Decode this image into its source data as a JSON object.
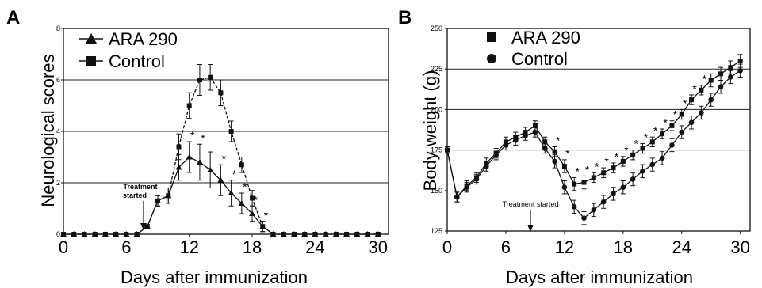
{
  "panels": [
    {
      "letter": "A",
      "ylabel": "Neurological scores",
      "xlabel": "Days after immunization",
      "annotation": "Treatment started",
      "annotation_lines": [
        "Treatment",
        "started"
      ],
      "legend": [
        {
          "label": "ARA 290",
          "marker": "triangle"
        },
        {
          "label": "Control",
          "marker": "square"
        }
      ]
    },
    {
      "letter": "B",
      "ylabel": "Body weight (g)",
      "xlabel": "Days after immunization",
      "annotation": "Treatment started",
      "legend": [
        {
          "label": "ARA 290",
          "marker": "square"
        },
        {
          "label": "Control",
          "marker": "circle"
        }
      ]
    }
  ],
  "chart_data": [
    {
      "type": "line",
      "title": "",
      "xlabel": "Days after immunization",
      "ylabel": "Neurological scores",
      "xlim": [
        0,
        31
      ],
      "ylim": [
        0,
        8
      ],
      "xticks": [
        0,
        6,
        12,
        18,
        24,
        30
      ],
      "yticks": [
        0,
        2,
        4,
        6,
        8
      ],
      "grid_y": [
        2,
        4,
        6
      ],
      "legend_position": "top-left",
      "annotation": {
        "text": "Treatment started",
        "x": 7.5
      },
      "series": [
        {
          "name": "ARA 290",
          "marker": "triangle",
          "x": [
            0,
            1,
            2,
            3,
            4,
            5,
            6,
            7,
            8,
            9,
            10,
            11,
            12,
            13,
            14,
            15,
            16,
            17,
            18,
            19,
            20,
            21,
            22,
            23,
            24,
            25,
            26,
            27,
            28,
            29,
            30
          ],
          "y": [
            0,
            0,
            0,
            0,
            0,
            0,
            0,
            0,
            0.3,
            1.3,
            1.5,
            2.6,
            3.0,
            2.8,
            2.5,
            2.1,
            1.6,
            1.2,
            0.8,
            0.3,
            0,
            0,
            0,
            0,
            0,
            0,
            0,
            0,
            0,
            0,
            0
          ],
          "err": [
            0,
            0,
            0,
            0,
            0,
            0,
            0,
            0,
            0,
            0.2,
            0.3,
            0.5,
            0.6,
            0.7,
            0.7,
            0.6,
            0.5,
            0.4,
            0.3,
            0.2,
            0,
            0,
            0,
            0,
            0,
            0,
            0,
            0,
            0,
            0,
            0
          ],
          "significant_x": [
            12,
            13,
            15,
            16,
            17,
            18,
            19
          ]
        },
        {
          "name": "Control",
          "marker": "square",
          "x": [
            0,
            1,
            2,
            3,
            4,
            5,
            6,
            7,
            8,
            9,
            10,
            11,
            12,
            13,
            14,
            15,
            16,
            17,
            18,
            19,
            20,
            21,
            22,
            23,
            24,
            25,
            26,
            27,
            28,
            29,
            30
          ],
          "y": [
            0,
            0,
            0,
            0,
            0,
            0,
            0,
            0,
            0.3,
            1.3,
            1.5,
            3.4,
            5.0,
            6.0,
            6.1,
            5.5,
            4.0,
            2.7,
            1.4,
            0.3,
            0,
            0,
            0,
            0,
            0,
            0,
            0,
            0,
            0,
            0,
            0
          ],
          "err": [
            0,
            0,
            0,
            0,
            0,
            0,
            0,
            0,
            0,
            0.2,
            0.3,
            0.5,
            0.5,
            0.6,
            0.5,
            0.5,
            0.4,
            0.3,
            0.3,
            0.2,
            0,
            0,
            0,
            0,
            0,
            0,
            0,
            0,
            0,
            0,
            0
          ]
        }
      ]
    },
    {
      "type": "line",
      "title": "",
      "xlabel": "Days after immunization",
      "ylabel": "Body weight (g)",
      "xlim": [
        0,
        31
      ],
      "ylim": [
        125,
        250
      ],
      "xticks": [
        0,
        6,
        12,
        18,
        24,
        30
      ],
      "yticks": [
        125,
        150,
        175,
        200,
        225,
        250
      ],
      "grid_y": [
        175,
        200,
        225
      ],
      "legend_position": "top-left",
      "annotation": {
        "text": "Treatment started",
        "x": 7
      },
      "series": [
        {
          "name": "ARA 290",
          "marker": "square",
          "x": [
            0,
            1,
            2,
            3,
            4,
            5,
            6,
            7,
            8,
            9,
            10,
            11,
            12,
            13,
            14,
            15,
            16,
            17,
            18,
            19,
            20,
            21,
            22,
            23,
            24,
            25,
            26,
            27,
            28,
            29,
            30
          ],
          "y": [
            175,
            146,
            153,
            158,
            167,
            173,
            180,
            183,
            186,
            190,
            180,
            174,
            165,
            154,
            155,
            158,
            161,
            164,
            168,
            172,
            176,
            180,
            185,
            190,
            197,
            206,
            212,
            218,
            222,
            226,
            230
          ],
          "err": [
            2,
            3,
            3,
            3,
            3,
            3,
            3,
            3,
            3,
            3,
            3,
            3,
            4,
            4,
            4,
            3,
            3,
            3,
            3,
            3,
            3,
            3,
            3,
            3,
            3,
            3,
            3,
            4,
            4,
            4,
            4
          ],
          "significant_x": [
            11,
            12,
            13,
            14,
            15,
            16,
            17,
            18,
            19,
            20,
            21,
            22,
            23,
            24,
            25,
            26
          ]
        },
        {
          "name": "Control",
          "marker": "circle",
          "x": [
            0,
            1,
            2,
            3,
            4,
            5,
            6,
            7,
            8,
            9,
            10,
            11,
            12,
            13,
            14,
            15,
            16,
            17,
            18,
            19,
            20,
            21,
            22,
            23,
            24,
            25,
            26,
            27,
            28,
            29,
            30
          ],
          "y": [
            175,
            146,
            152,
            157,
            165,
            172,
            178,
            181,
            184,
            186,
            176,
            168,
            152,
            140,
            133,
            138,
            143,
            148,
            152,
            157,
            162,
            166,
            170,
            178,
            186,
            192,
            198,
            206,
            214,
            220,
            224
          ],
          "err": [
            2,
            3,
            3,
            3,
            3,
            3,
            3,
            3,
            3,
            3,
            3,
            4,
            4,
            4,
            4,
            4,
            4,
            4,
            4,
            4,
            4,
            4,
            4,
            4,
            4,
            4,
            4,
            4,
            4,
            4,
            4
          ]
        }
      ]
    }
  ]
}
